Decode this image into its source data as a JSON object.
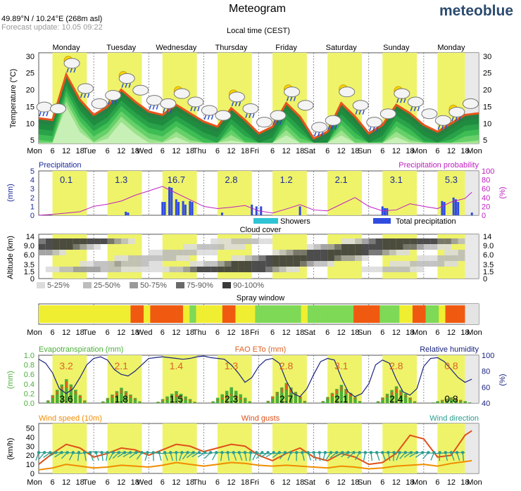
{
  "header": {
    "title": "Meteogram",
    "brand": "meteoblue",
    "coords": "49.89°N / 10.24°E (268m asl)",
    "forecast_update": "Forecast update: 10.05 09:22",
    "local_time": "Local time (CEST)"
  },
  "days": [
    "Monday",
    "Tuesday",
    "Wednesday",
    "Thursday",
    "Friday",
    "Saturday",
    "Sunday",
    "Monday"
  ],
  "x_ticks": [
    "Mon",
    "6",
    "12",
    "18",
    "Tue",
    "6",
    "12",
    "18",
    "Wed",
    "6",
    "12",
    "18",
    "Thu",
    "6",
    "12",
    "18",
    "Fri",
    "6",
    "12",
    "18",
    "Sat",
    "6",
    "12",
    "18",
    "Sun",
    "6",
    "12",
    "18",
    "Mon",
    "6",
    "12",
    "18",
    "Mon"
  ],
  "colors": {
    "highlight": "#eef36a",
    "temp_line": "#e8541b",
    "precip_bar": "#2f4be0",
    "prob_line": "#c020c0",
    "humidity_line": "#1a237e",
    "wind_speed": "#f08c00",
    "wind_gust": "#e0501a",
    "wind_dir": "#2a9d8f",
    "evapo": "#4caf3a",
    "fao": "#e06020"
  },
  "chart_data": [
    {
      "type": "area",
      "name": "temperature",
      "ylabel": "Temperature (°C)",
      "ylim": [
        4,
        31
      ],
      "y_ticks": [
        5,
        10,
        15,
        20,
        25,
        30
      ],
      "x": [
        0,
        6,
        12,
        18,
        24,
        30,
        36,
        42,
        48,
        54,
        60,
        66,
        72,
        78,
        84,
        90,
        96,
        102,
        108,
        114,
        120,
        126,
        132,
        138,
        144,
        150,
        156,
        162,
        168,
        174,
        180,
        186,
        192
      ],
      "y": [
        11.5,
        11,
        24.5,
        17,
        12.5,
        15,
        20,
        16.5,
        13.5,
        12.5,
        15.5,
        13,
        10.5,
        9,
        14.5,
        11,
        7,
        9,
        16,
        12,
        5.5,
        7.5,
        16,
        12,
        7,
        9.5,
        15.5,
        13,
        9.5,
        7.5,
        10,
        12.5,
        13
      ]
    },
    {
      "type": "bar",
      "name": "precipitation",
      "title": "Precipitation",
      "ylabel": "(mm)",
      "ylim": [
        0,
        5
      ],
      "y_ticks": [
        0,
        1,
        2,
        3,
        4,
        5
      ],
      "daily_totals": [
        "0.1",
        "1.3",
        "16.7",
        "2.8",
        "1.2",
        "2.1",
        "3.1",
        "5.3"
      ],
      "series": [
        {
          "name": "Showers",
          "color": "#2ec4d6",
          "values": []
        },
        {
          "name": "Total precipitation",
          "color": "#2f4be0",
          "x": [
            38,
            39,
            54,
            55,
            57,
            58,
            60,
            61,
            63,
            64,
            66,
            67,
            80,
            93,
            95,
            97,
            114,
            150,
            151,
            152,
            176,
            177,
            181,
            182,
            183,
            189
          ],
          "values": [
            0.4,
            0.3,
            1.5,
            1.5,
            3.2,
            3.1,
            1.8,
            1.5,
            1.6,
            1.2,
            1.6,
            1.5,
            0.3,
            1.2,
            1.0,
            1.0,
            1.0,
            1.0,
            0.8,
            0.8,
            1.6,
            1.5,
            2.0,
            1.8,
            1.5,
            0.3
          ]
        }
      ]
    },
    {
      "type": "line",
      "name": "precipitation-probability",
      "title": "Precipitation probability",
      "ylabel": "(%)",
      "ylim": [
        0,
        100
      ],
      "y_ticks": [
        0,
        20,
        40,
        60,
        80,
        100
      ],
      "x": [
        0,
        6,
        12,
        18,
        24,
        30,
        36,
        42,
        48,
        54,
        60,
        66,
        72,
        78,
        84,
        90,
        96,
        102,
        108,
        114,
        120,
        126,
        132,
        138,
        144,
        150,
        156,
        162,
        168,
        174,
        180,
        186,
        189
      ],
      "y": [
        0,
        2,
        5,
        8,
        20,
        25,
        32,
        45,
        55,
        65,
        50,
        35,
        20,
        15,
        18,
        22,
        10,
        5,
        14,
        24,
        12,
        10,
        25,
        40,
        20,
        10,
        12,
        26,
        20,
        15,
        30,
        38,
        52
      ]
    },
    {
      "type": "heatmap",
      "name": "cloud-cover",
      "title": "Cloud cover",
      "ylabel": "Altitude (km)",
      "y_ticks": [
        "0",
        "1.5",
        "3.5",
        "6.0",
        "9.0",
        "14"
      ],
      "legend": [
        "5-25%",
        "25-50%",
        "50-75%",
        "75-90%",
        "90-100%"
      ],
      "legend_colors": [
        "#dcdcdc",
        "#bdbdbd",
        "#9a9a9a",
        "#6a6a6a",
        "#3a3a3a"
      ]
    },
    {
      "type": "table",
      "name": "spray-window",
      "title": "Spray window",
      "colors": {
        "good": "#7ed957",
        "moderate": "#f0ee30",
        "poor": "#f05a10"
      },
      "segments": [
        "m",
        "m",
        "m",
        "m",
        "m",
        "m",
        "m",
        "m",
        "m",
        "m",
        "m",
        "m",
        "m",
        "m",
        "p",
        "p",
        "m",
        "p",
        "p",
        "p",
        "p",
        "p",
        "m",
        "g",
        "m",
        "m",
        "m",
        "m",
        "p",
        "p",
        "m",
        "m",
        "m",
        "g",
        "g",
        "g",
        "g",
        "g",
        "g",
        "g",
        "m",
        "g",
        "g",
        "g",
        "g",
        "g",
        "g",
        "g",
        "p",
        "p",
        "p",
        "p",
        "g",
        "g",
        "g",
        "m",
        "m",
        "p",
        "p",
        "g",
        "g",
        "m",
        "p",
        "p",
        "p"
      ]
    },
    {
      "type": "bar",
      "name": "evapotranspiration",
      "title": "Evapotranspiration (mm)",
      "ylabel": "(mm)",
      "ylim": [
        0,
        1.0
      ],
      "y_ticks": [
        "0.0",
        "0.2",
        "0.4",
        "0.6",
        "0.8",
        "1.0"
      ],
      "fao_title": "FAO ETo (mm)",
      "fao_totals": [
        "3.2",
        "2.1",
        "1.4",
        "1.3",
        "2.8",
        "3.1",
        "2.8",
        "0.8"
      ],
      "evapo_totals": [
        "3.6",
        "1.8",
        "1.5",
        "2.3",
        "2.7",
        "2.1",
        "2.4",
        "0.8"
      ],
      "evapo_peaks": [
        0.5,
        0.32,
        0.25,
        0.33,
        0.42,
        0.38,
        0.35,
        0.12
      ],
      "fao_peaks": [
        0.45,
        0.28,
        0.18,
        0.2,
        0.4,
        0.35,
        0.3,
        0.1
      ]
    },
    {
      "type": "line",
      "name": "relative-humidity",
      "title": "Relative humidity",
      "ylabel": "(%)",
      "ylim": [
        40,
        100
      ],
      "y_ticks": [
        40,
        60,
        80,
        100
      ],
      "x": [
        0,
        3,
        6,
        9,
        12,
        15,
        18,
        21,
        24,
        27,
        30,
        33,
        36,
        39,
        42,
        45,
        48,
        51,
        54,
        57,
        60,
        63,
        66,
        69,
        72,
        75,
        78,
        81,
        84,
        87,
        90,
        93,
        96,
        99,
        102,
        105,
        108,
        111,
        114,
        117,
        120,
        123,
        126,
        129,
        132,
        135,
        138,
        141,
        144,
        147,
        150,
        153,
        156,
        159,
        162,
        165,
        168,
        171,
        174,
        177,
        180,
        183,
        186,
        189
      ],
      "y": [
        95,
        90,
        78,
        58,
        52,
        58,
        72,
        88,
        96,
        98,
        94,
        82,
        76,
        74,
        80,
        88,
        96,
        97,
        98,
        97,
        96,
        95,
        96,
        98,
        99,
        97,
        96,
        95,
        88,
        78,
        66,
        72,
        86,
        94,
        96,
        90,
        68,
        52,
        48,
        58,
        76,
        92,
        96,
        94,
        72,
        54,
        48,
        52,
        64,
        88,
        94,
        90,
        70,
        54,
        50,
        58,
        86,
        96,
        97,
        92,
        82,
        72,
        66,
        70
      ]
    },
    {
      "type": "line",
      "name": "wind",
      "title": "Wind speed (10m)",
      "ylabel": "(km/h)",
      "ylim": [
        0,
        55
      ],
      "y_ticks": [
        0,
        10,
        20,
        30,
        40,
        50
      ],
      "gust_title": "Wind gusts",
      "direction_title": "Wind direction",
      "series": [
        {
          "name": "Wind speed (10m)",
          "x": [
            0,
            6,
            12,
            18,
            24,
            30,
            36,
            42,
            48,
            54,
            60,
            66,
            72,
            78,
            84,
            90,
            96,
            102,
            108,
            114,
            120,
            126,
            132,
            138,
            144,
            150,
            156,
            162,
            168,
            174,
            180,
            186,
            189
          ],
          "values": [
            4,
            6,
            10,
            8,
            6,
            7,
            9,
            8,
            7,
            9,
            12,
            10,
            8,
            10,
            12,
            11,
            9,
            8,
            9,
            8,
            7,
            6,
            8,
            7,
            5,
            6,
            8,
            9,
            10,
            8,
            11,
            13,
            14
          ]
        },
        {
          "name": "Wind gusts",
          "x": [
            0,
            6,
            12,
            18,
            24,
            30,
            36,
            42,
            48,
            54,
            60,
            66,
            72,
            78,
            84,
            90,
            96,
            102,
            108,
            114,
            120,
            126,
            132,
            138,
            144,
            150,
            156,
            162,
            168,
            174,
            180,
            186,
            189
          ],
          "values": [
            10,
            22,
            32,
            28,
            18,
            22,
            28,
            26,
            20,
            26,
            32,
            30,
            24,
            28,
            32,
            30,
            20,
            14,
            22,
            28,
            18,
            14,
            22,
            18,
            10,
            12,
            22,
            42,
            38,
            18,
            20,
            42,
            47
          ]
        },
        {
          "name": "Wind direction",
          "x": [
            0,
            6,
            12,
            18,
            24,
            30,
            36,
            42,
            48,
            54,
            60,
            66,
            72,
            78,
            84,
            90,
            96,
            102,
            108,
            114,
            120,
            126,
            132,
            138,
            144,
            150,
            156,
            162,
            168,
            174,
            180,
            186
          ],
          "values": [
            23,
            23,
            23,
            22,
            24,
            23,
            23,
            23,
            23,
            22,
            23,
            23,
            22,
            23,
            23,
            23,
            22,
            22,
            23,
            23,
            23,
            23,
            23,
            23,
            23,
            23,
            23,
            23,
            23,
            22,
            23,
            23
          ]
        }
      ]
    }
  ]
}
